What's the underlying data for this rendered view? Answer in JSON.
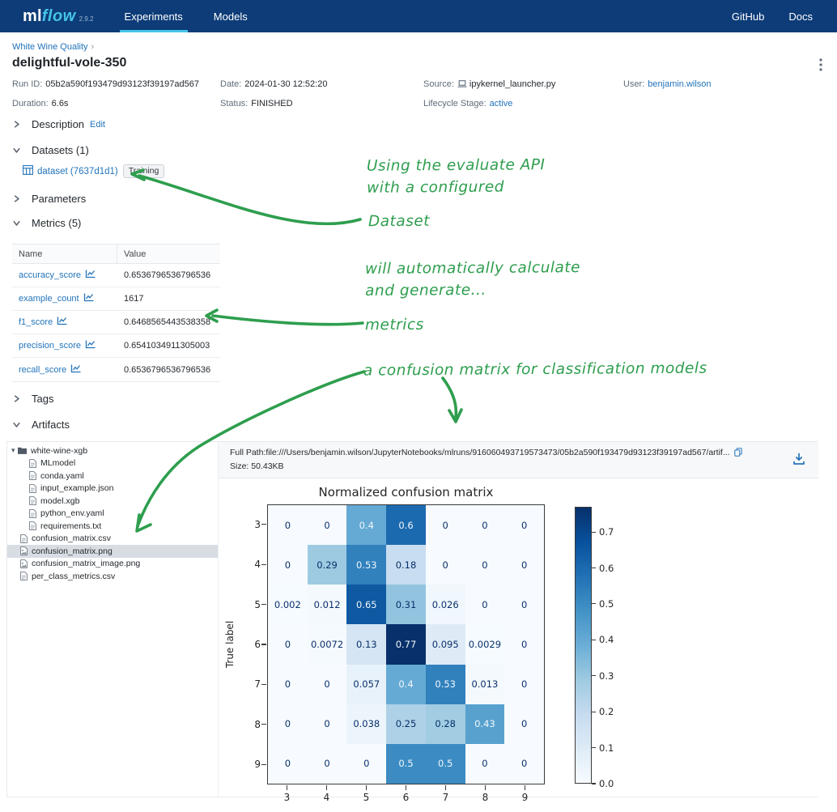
{
  "navbar": {
    "logo_ml": "ml",
    "logo_flow": "flow",
    "version": "2.9.2",
    "tabs": [
      {
        "label": "Experiments",
        "active": true
      },
      {
        "label": "Models",
        "active": false
      }
    ],
    "right_links": [
      "GitHub",
      "Docs"
    ],
    "colors": {
      "background": "#0d3c78",
      "accent": "#45c4e9"
    }
  },
  "breadcrumb": {
    "experiment": "White Wine Quality",
    "separator": "›"
  },
  "run": {
    "title": "delightful-vole-350",
    "fields": [
      {
        "label": "Run ID:",
        "value": "05b2a590f193479d93123f39197ad567",
        "link": false,
        "icon": null
      },
      {
        "label": "Date:",
        "value": "2024-01-30 12:52:20",
        "link": false,
        "icon": null
      },
      {
        "label": "Source:",
        "value": "ipykernel_launcher.py",
        "link": false,
        "icon": "notebook-icon"
      },
      {
        "label": "User:",
        "value": "benjamin.wilson",
        "link": true,
        "icon": null
      },
      {
        "label": "Duration:",
        "value": "6.6s",
        "link": false,
        "icon": null
      },
      {
        "label": "Status:",
        "value": "FINISHED",
        "link": false,
        "icon": null
      },
      {
        "label": "Lifecycle Stage:",
        "value": "active",
        "link": true,
        "icon": null
      }
    ]
  },
  "sections": {
    "description": {
      "label": "Description",
      "action": "Edit",
      "expanded": false
    },
    "datasets": {
      "label": "Datasets (1)",
      "expanded": true
    },
    "dataset_item": {
      "name": "dataset (7637d1d1)",
      "tag": "Training"
    },
    "parameters": {
      "label": "Parameters",
      "expanded": false
    },
    "metrics": {
      "label": "Metrics (5)",
      "expanded": true
    },
    "tags": {
      "label": "Tags",
      "expanded": false
    },
    "artifacts": {
      "label": "Artifacts",
      "expanded": true
    }
  },
  "metrics_table": {
    "columns": [
      "Name",
      "Value"
    ],
    "rows": [
      {
        "name": "accuracy_score",
        "value": "0.6536796536796536"
      },
      {
        "name": "example_count",
        "value": "1617"
      },
      {
        "name": "f1_score",
        "value": "0.6468565443538358"
      },
      {
        "name": "precision_score",
        "value": "0.6541034911305003"
      },
      {
        "name": "recall_score",
        "value": "0.6536796536796536"
      }
    ]
  },
  "artifacts_panel": {
    "tree": [
      {
        "label": "white-wine-xgb",
        "type": "folder",
        "depth": 0,
        "selected": false
      },
      {
        "label": "MLmodel",
        "type": "file",
        "depth": 1,
        "selected": false
      },
      {
        "label": "conda.yaml",
        "type": "file",
        "depth": 1,
        "selected": false
      },
      {
        "label": "input_example.json",
        "type": "file",
        "depth": 1,
        "selected": false
      },
      {
        "label": "model.xgb",
        "type": "file",
        "depth": 1,
        "selected": false
      },
      {
        "label": "python_env.yaml",
        "type": "file",
        "depth": 1,
        "selected": false
      },
      {
        "label": "requirements.txt",
        "type": "file",
        "depth": 1,
        "selected": false
      },
      {
        "label": "confusion_matrix.csv",
        "type": "file",
        "depth": 0,
        "selected": false
      },
      {
        "label": "confusion_matrix.png",
        "type": "image",
        "depth": 0,
        "selected": true
      },
      {
        "label": "confusion_matrix_image.png",
        "type": "image",
        "depth": 0,
        "selected": false
      },
      {
        "label": "per_class_metrics.csv",
        "type": "file",
        "depth": 0,
        "selected": false
      }
    ],
    "viewer": {
      "full_path": "Full Path:file:///Users/benjamin.wilson/JupyterNotebooks/mlruns/916060493719573473/05b2a590f193479d93123f39197ad567/artif...",
      "size": "Size: 50.43KB"
    }
  },
  "annotations": {
    "color": "#2e9e4e",
    "items": [
      {
        "lines": [
          "Using the evaluate API",
          "with a configured"
        ]
      },
      {
        "lines": [
          "Dataset"
        ]
      },
      {
        "lines": [
          "will automatically calculate",
          "and generate..."
        ]
      },
      {
        "lines": [
          "metrics"
        ]
      },
      {
        "lines": [
          "a confusion matrix for classification models"
        ]
      }
    ]
  },
  "chart_data": {
    "type": "heatmap",
    "title": "Normalized confusion matrix",
    "ylabel": "True label",
    "x_labels": [
      "3",
      "4",
      "5",
      "6",
      "7",
      "8",
      "9"
    ],
    "y_labels": [
      "3",
      "4",
      "5",
      "6",
      "7",
      "8",
      "9"
    ],
    "matrix": [
      [
        0,
        0,
        0.4,
        0.6,
        0,
        0,
        0
      ],
      [
        0,
        0.29,
        0.53,
        0.18,
        0,
        0,
        0
      ],
      [
        0.002,
        0.012,
        0.65,
        0.31,
        0.026,
        0,
        0
      ],
      [
        0,
        0.0072,
        0.13,
        0.77,
        0.095,
        0.0029,
        0
      ],
      [
        0,
        0,
        0.057,
        0.4,
        0.53,
        0.013,
        0
      ],
      [
        0,
        0,
        0.038,
        0.25,
        0.28,
        0.43,
        0
      ],
      [
        0,
        0,
        0,
        0.5,
        0.5,
        0,
        0
      ]
    ],
    "colormap": "Blues",
    "vmin": 0,
    "vmax": 0.77,
    "colorbar_ticks": [
      0.0,
      0.1,
      0.2,
      0.3,
      0.4,
      0.5,
      0.6,
      0.7
    ],
    "legend_position": "right",
    "grid": false
  }
}
